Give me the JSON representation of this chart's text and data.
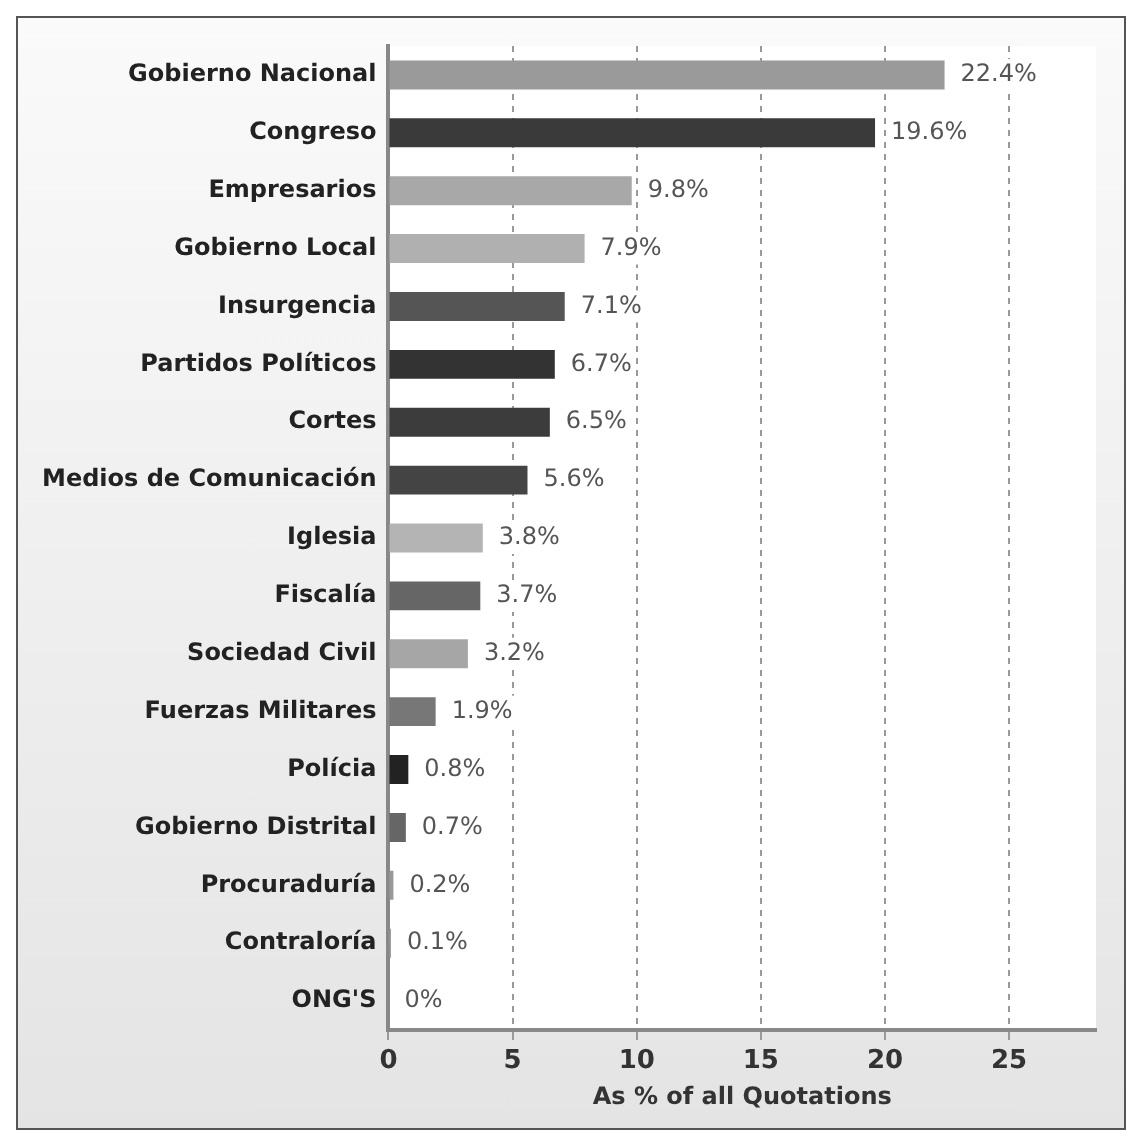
{
  "chart_data": {
    "type": "bar",
    "orientation": "horizontal",
    "xlabel": "As % of all Quotations",
    "categories": [
      "Gobierno Nacional",
      "Congreso",
      "Empresarios",
      "Gobierno Local",
      "Insurgencia",
      "Partidos Políticos",
      "Cortes",
      "Medios de Comunicación",
      "Iglesia",
      "Fiscalía",
      "Sociedad Civil",
      "Fuerzas Militares",
      "Polícia",
      "Gobierno Distrital",
      "Procuraduría",
      "Contraloría",
      "ONG'S"
    ],
    "values": [
      22.4,
      19.6,
      9.8,
      7.9,
      7.1,
      6.7,
      6.5,
      5.6,
      3.8,
      3.7,
      3.2,
      1.9,
      0.8,
      0.7,
      0.2,
      0.1,
      0
    ],
    "value_labels": [
      "22.4%",
      "19.6%",
      "9.8%",
      "7.9%",
      "7.1%",
      "6.7%",
      "6.5%",
      "5.6%",
      "3.8%",
      "3.7%",
      "3.2%",
      "1.9%",
      "0.8%",
      "0.7%",
      "0.2%",
      "0.1%",
      "0%"
    ],
    "colors": [
      "#9a9a9a",
      "#3a3a3a",
      "#a8a8a8",
      "#b0b0b0",
      "#555555",
      "#333333",
      "#3c3c3c",
      "#444444",
      "#b4b4b4",
      "#666666",
      "#a6a6a6",
      "#777777",
      "#222222",
      "#666666",
      "#999999",
      "#999999",
      "#999999"
    ],
    "xlim": [
      0,
      28.5
    ],
    "xticks": [
      0,
      5,
      10,
      15,
      20,
      25
    ],
    "grid": "x",
    "legend": false
  }
}
